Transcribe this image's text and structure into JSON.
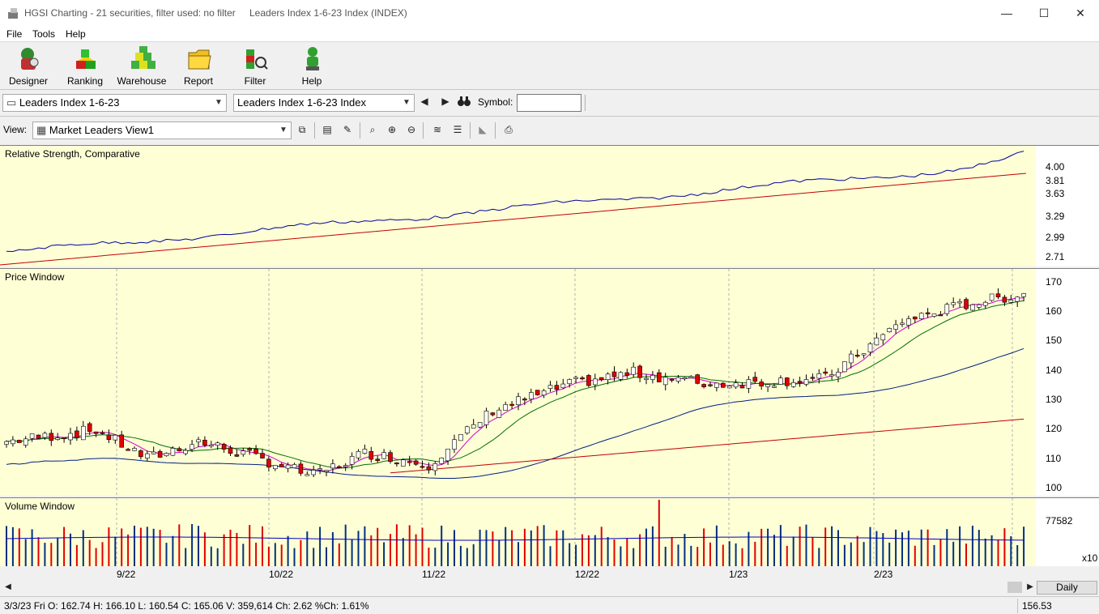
{
  "window": {
    "app_title": "HGSI Charting - 21 securities, filter used: no filter",
    "doc_title": "Leaders Index 1-6-23 Index (INDEX)",
    "minimize_glyph": "—",
    "maximize_glyph": "☐",
    "close_glyph": "✕"
  },
  "menu": {
    "file": "File",
    "tools": "Tools",
    "help": "Help"
  },
  "toolbar": {
    "designer": "Designer",
    "ranking": "Ranking",
    "warehouse": "Warehouse",
    "report": "Report",
    "filter": "Filter",
    "help": "Help"
  },
  "selectors": {
    "list_value": "Leaders Index 1-6-23",
    "security_value": "Leaders Index 1-6-23 Index",
    "symbol_label": "Symbol:",
    "symbol_value": "",
    "view_label": "View:",
    "view_value": "Market Leaders View1"
  },
  "panels": {
    "rs_title": "Relative Strength, Comparative",
    "price_title": "Price Window",
    "volume_title": "Volume Window",
    "volume_multiplier": "x10"
  },
  "chart_data": [
    {
      "type": "line",
      "title": "Relative Strength, Comparative",
      "ytick_labels": [
        "4.00",
        "3.81",
        "3.63",
        "3.29",
        "2.99",
        "2.71"
      ],
      "series_colors": [
        "#0000a0",
        "#c00000"
      ]
    },
    {
      "type": "candlestick",
      "title": "Price Window",
      "ylim": [
        97,
        172
      ],
      "ytick_labels": [
        "170",
        "160",
        "150",
        "140",
        "130",
        "120",
        "110",
        "100"
      ],
      "xtick_labels": [
        "9/22",
        "10/22",
        "11/22",
        "12/22",
        "1/23",
        "2/23"
      ],
      "moving_average_colors": [
        "#d000d0",
        "#007000",
        "#002080",
        "#c00000"
      ],
      "last_bar": {
        "open": 162.74,
        "high": 166.1,
        "low": 160.54,
        "close": 165.06
      }
    },
    {
      "type": "bar",
      "title": "Volume Window",
      "ytick_labels": [
        "77582"
      ],
      "series_colors": [
        "#003080",
        "#e00000"
      ]
    }
  ],
  "footer": {
    "daily_button": "Daily",
    "status": "3/3/23 Fri O: 162.74 H: 166.10 L: 160.54 C: 165.06 V: 359,614 Ch: 2.62 %Ch: 1.61%",
    "right_value": "156.53"
  }
}
